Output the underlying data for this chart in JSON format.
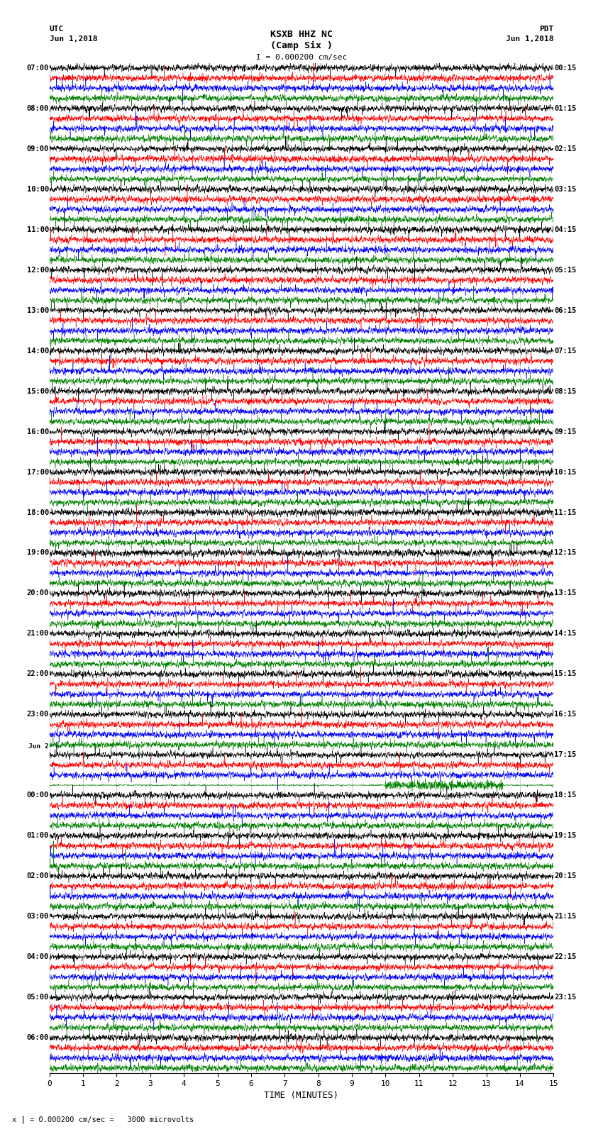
{
  "title_line1": "KSXB HHZ NC",
  "title_line2": "(Camp Six )",
  "scale_label": "I = 0.000200 cm/sec",
  "bottom_note": "x ] = 0.000200 cm/sec =   3000 microvolts",
  "xlabel": "TIME (MINUTES)",
  "left_header": "UTC",
  "left_date": "Jun 1,2018",
  "right_header": "PDT",
  "right_date": "Jun 1,2018",
  "utc_labels": [
    "07:00",
    "08:00",
    "09:00",
    "10:00",
    "11:00",
    "12:00",
    "13:00",
    "14:00",
    "15:00",
    "16:00",
    "17:00",
    "18:00",
    "19:00",
    "20:00",
    "21:00",
    "22:00",
    "23:00",
    "Jun 2",
    "00:00",
    "01:00",
    "02:00",
    "03:00",
    "04:00",
    "05:00",
    "06:00"
  ],
  "pdt_labels": [
    "00:15",
    "01:15",
    "02:15",
    "03:15",
    "04:15",
    "05:15",
    "06:15",
    "07:15",
    "08:15",
    "09:15",
    "10:15",
    "11:15",
    "12:15",
    "13:15",
    "14:15",
    "15:15",
    "16:15",
    "17:15",
    "18:15",
    "19:15",
    "20:15",
    "21:15",
    "22:15",
    "23:15"
  ],
  "trace_colors": [
    "black",
    "red",
    "blue",
    "green"
  ],
  "bg_color": "white",
  "n_rows": 25,
  "traces_per_row": 4,
  "x_min": 0,
  "x_max": 15,
  "x_ticks": [
    0,
    1,
    2,
    3,
    4,
    5,
    6,
    7,
    8,
    9,
    10,
    11,
    12,
    13,
    14,
    15
  ],
  "seed": 42
}
